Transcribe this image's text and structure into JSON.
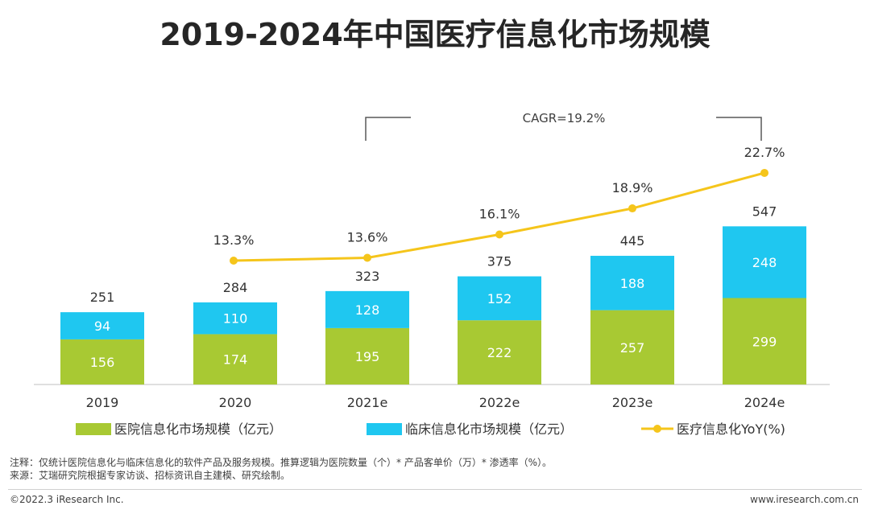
{
  "title": "2019-2024年中国医疗信息化市场规模",
  "cagr_label": "CAGR=19.2%",
  "colors": {
    "hospital": "#a8c933",
    "clinical": "#1fc7f0",
    "yoy": "#f5c51b",
    "axis": "#bfbfbf",
    "text": "#333333"
  },
  "chart_data": {
    "type": "bar",
    "stacked": true,
    "categories": [
      "2019",
      "2020",
      "2021e",
      "2022e",
      "2023e",
      "2024e"
    ],
    "series": [
      {
        "name": "医院信息化市场规模（亿元）",
        "values": [
          156,
          174,
          195,
          222,
          257,
          299
        ]
      },
      {
        "name": "临床信息化市场规模（亿元）",
        "values": [
          94,
          110,
          128,
          152,
          188,
          248
        ]
      }
    ],
    "totals": [
      251,
      284,
      323,
      375,
      445,
      547
    ],
    "line_series": {
      "name": "医疗信息化YoY(%)",
      "values": [
        null,
        13.3,
        13.6,
        16.1,
        18.9,
        22.7
      ],
      "labels": [
        "",
        "13.3%",
        "13.6%",
        "16.1%",
        "18.9%",
        "22.7%"
      ]
    },
    "legend_position": "bottom",
    "grid": false
  },
  "notes": {
    "line1": "注释：仅统计医院信息化与临床信息化的软件产品及服务规模。推算逻辑为医院数量（个）* 产品客单价（万）* 渗透率（%）。",
    "line2": "来源：艾瑞研究院根据专家访谈、招标资讯自主建模、研究绘制。"
  },
  "footer": {
    "copyright": "©2022.3 iResearch Inc.",
    "website": "www.iresearch.com.cn"
  }
}
